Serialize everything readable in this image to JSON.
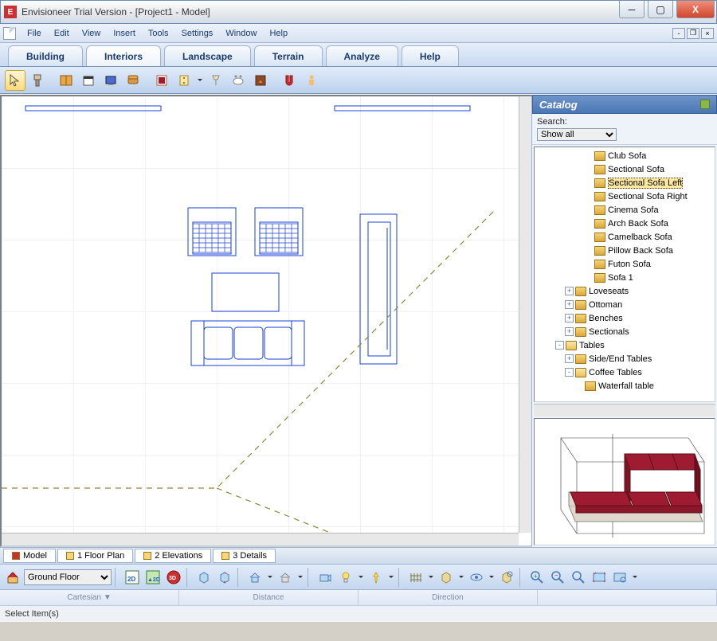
{
  "window": {
    "title": "Envisioneer Trial Version - [Project1 - Model]"
  },
  "menu": [
    "File",
    "Edit",
    "View",
    "Insert",
    "Tools",
    "Settings",
    "Window",
    "Help"
  ],
  "bigtabs": [
    "Building",
    "Interiors",
    "Landscape",
    "Terrain",
    "Analyze",
    "Help"
  ],
  "bigtabs_active": 1,
  "catalog": {
    "title": "Catalog",
    "search_label": "Search:",
    "filter": "Show all",
    "tree": [
      {
        "indent": 60,
        "exp": "",
        "icon": "item",
        "label": "Club Sofa"
      },
      {
        "indent": 60,
        "exp": "",
        "icon": "item",
        "label": "Sectional Sofa"
      },
      {
        "indent": 60,
        "exp": "",
        "icon": "item",
        "label": "Sectional Sofa Left",
        "sel": true
      },
      {
        "indent": 60,
        "exp": "",
        "icon": "item",
        "label": "Sectional Sofa Right"
      },
      {
        "indent": 60,
        "exp": "",
        "icon": "item",
        "label": "Cinema Sofa"
      },
      {
        "indent": 60,
        "exp": "",
        "icon": "item",
        "label": "Arch Back Sofa"
      },
      {
        "indent": 60,
        "exp": "",
        "icon": "item",
        "label": "Camelback Sofa"
      },
      {
        "indent": 60,
        "exp": "",
        "icon": "item",
        "label": "Pillow Back Sofa"
      },
      {
        "indent": 60,
        "exp": "",
        "icon": "item",
        "label": "Futon Sofa"
      },
      {
        "indent": 60,
        "exp": "",
        "icon": "item",
        "label": "Sofa 1"
      },
      {
        "indent": 36,
        "exp": "+",
        "icon": "folder",
        "label": "Loveseats"
      },
      {
        "indent": 36,
        "exp": "+",
        "icon": "folder",
        "label": "Ottoman"
      },
      {
        "indent": 36,
        "exp": "+",
        "icon": "folder",
        "label": "Benches"
      },
      {
        "indent": 36,
        "exp": "+",
        "icon": "folder",
        "label": "Sectionals"
      },
      {
        "indent": 24,
        "exp": "-",
        "icon": "folder-open",
        "label": "Tables"
      },
      {
        "indent": 36,
        "exp": "+",
        "icon": "folder",
        "label": "Side/End Tables"
      },
      {
        "indent": 36,
        "exp": "-",
        "icon": "folder-open",
        "label": "Coffee Tables"
      },
      {
        "indent": 48,
        "exp": "",
        "icon": "item",
        "label": "Waterfall table"
      }
    ]
  },
  "bottom_tabs": [
    {
      "label": "Model",
      "m": true
    },
    {
      "label": "1 Floor Plan"
    },
    {
      "label": "2 Elevations"
    },
    {
      "label": "3 Details"
    }
  ],
  "floor_selector": "Ground Floor",
  "coord_labels": [
    "Cartesian ▼",
    "Distance",
    "Direction"
  ],
  "status": "Select Item(s)",
  "colors": {
    "sofa_body": "#9e1b32",
    "sofa_base": "#e0d8cc",
    "blueprint": "#1a3fd4",
    "dash": "#8a8a3a"
  }
}
